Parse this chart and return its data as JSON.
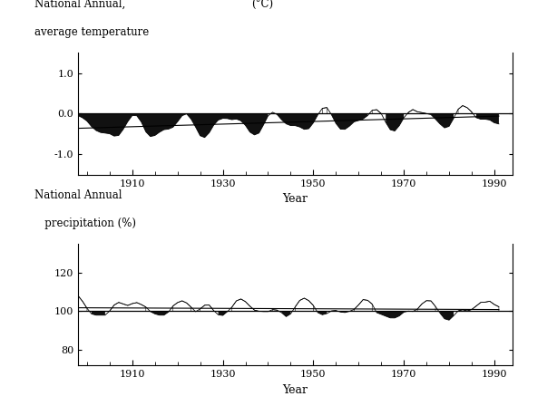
{
  "title_temp_line1": "National Annual,",
  "title_temp_line2": "average temperature",
  "unit_temp": "(°C)",
  "title_precip_line1": "National Annual",
  "title_precip_line2": "   precipitation (%)",
  "xlabel": "Year",
  "xlim": [
    1898,
    1994
  ],
  "xticks": [
    1910,
    1930,
    1950,
    1970,
    1990
  ],
  "temp_ylim": [
    -1.5,
    1.5
  ],
  "temp_yticks": [
    -1.0,
    0.0,
    1.0
  ],
  "precip_ylim": [
    72,
    135
  ],
  "precip_yticks": [
    80,
    100,
    120
  ],
  "baseline_temp": 0.0,
  "baseline_precip": 100.0,
  "background_color": "#ffffff",
  "fill_color": "#111111",
  "line_color": "#000000",
  "font_size_title": 8.5,
  "font_size_axis": 9,
  "font_size_tick": 8
}
